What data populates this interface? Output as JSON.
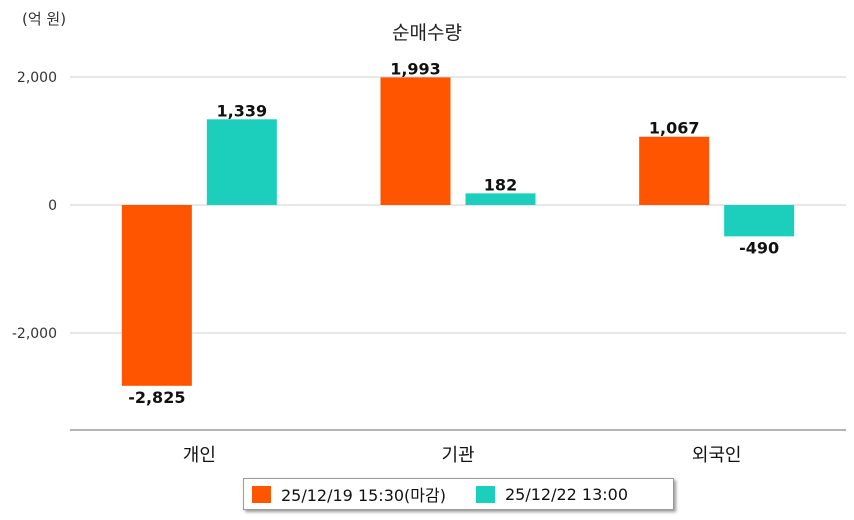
{
  "unit_label": "(억 원)",
  "chart_data": {
    "type": "bar",
    "title": "순매수량",
    "categories": [
      "개인",
      "기관",
      "외국인"
    ],
    "series": [
      {
        "name": "25/12/19 15:30(마감)",
        "color": "#ff5400",
        "values": [
          -2825,
          1993,
          1067
        ],
        "labels": [
          "-2,825",
          "1,993",
          "1,067"
        ]
      },
      {
        "name": "25/12/22 13:00",
        "color": "#1ccfbd",
        "values": [
          1339,
          182,
          -490
        ],
        "labels": [
          "1,339",
          "182",
          "-490"
        ]
      }
    ],
    "yticks": [
      2000,
      0,
      -2000
    ],
    "ytick_labels": [
      "2,000",
      "0",
      "-2,000"
    ],
    "ylim": [
      -3500,
      2000
    ],
    "grid": true,
    "legend": "bottom"
  }
}
